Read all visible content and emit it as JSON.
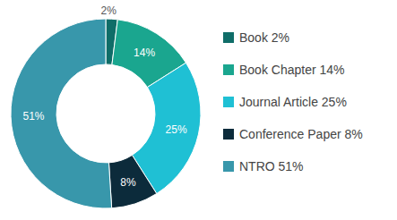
{
  "chart_data": {
    "type": "donut",
    "categories": [
      "Book 2%",
      "Book Chapter 14%",
      "Journal Article 25%",
      "Conference Paper 8%",
      "NTRO 51%"
    ],
    "values": [
      2,
      14,
      25,
      8,
      51
    ],
    "value_labels": [
      "2%",
      "14%",
      "25%",
      "8%",
      "51%"
    ],
    "colors": [
      "#0f6d68",
      "#1aa68f",
      "#1fc0d4",
      "#0c2b3b",
      "#3897ab"
    ],
    "data_labels": true,
    "legend": "right"
  }
}
